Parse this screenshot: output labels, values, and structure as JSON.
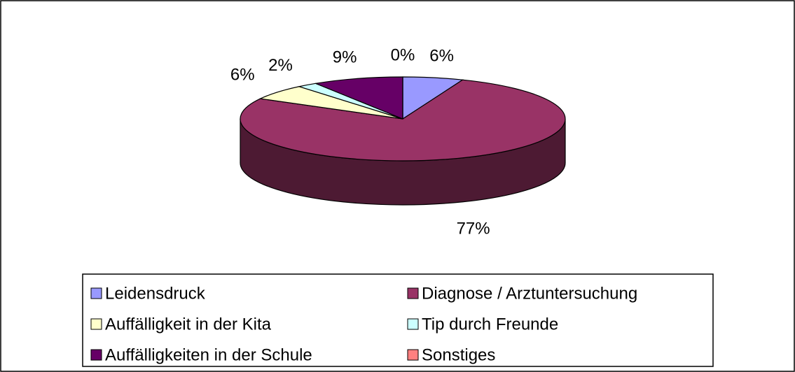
{
  "chart_data": {
    "type": "pie3d",
    "categories": [
      "Leidensdruck",
      "Diagnose / Arztuntersuchung",
      "Auffälligkeit in der Kita",
      "Tip durch Freunde",
      "Auffälligkeiten in der Schule",
      "Sonstiges"
    ],
    "values": [
      6,
      77,
      6,
      2,
      9,
      0
    ],
    "value_labels": [
      "6%",
      "77%",
      "6%",
      "2%",
      "9%",
      "0%"
    ],
    "colors": [
      "#9999ff",
      "#993366",
      "#ffffcc",
      "#ccffff",
      "#660066",
      "#ff8080"
    ],
    "legend": "bottom"
  }
}
